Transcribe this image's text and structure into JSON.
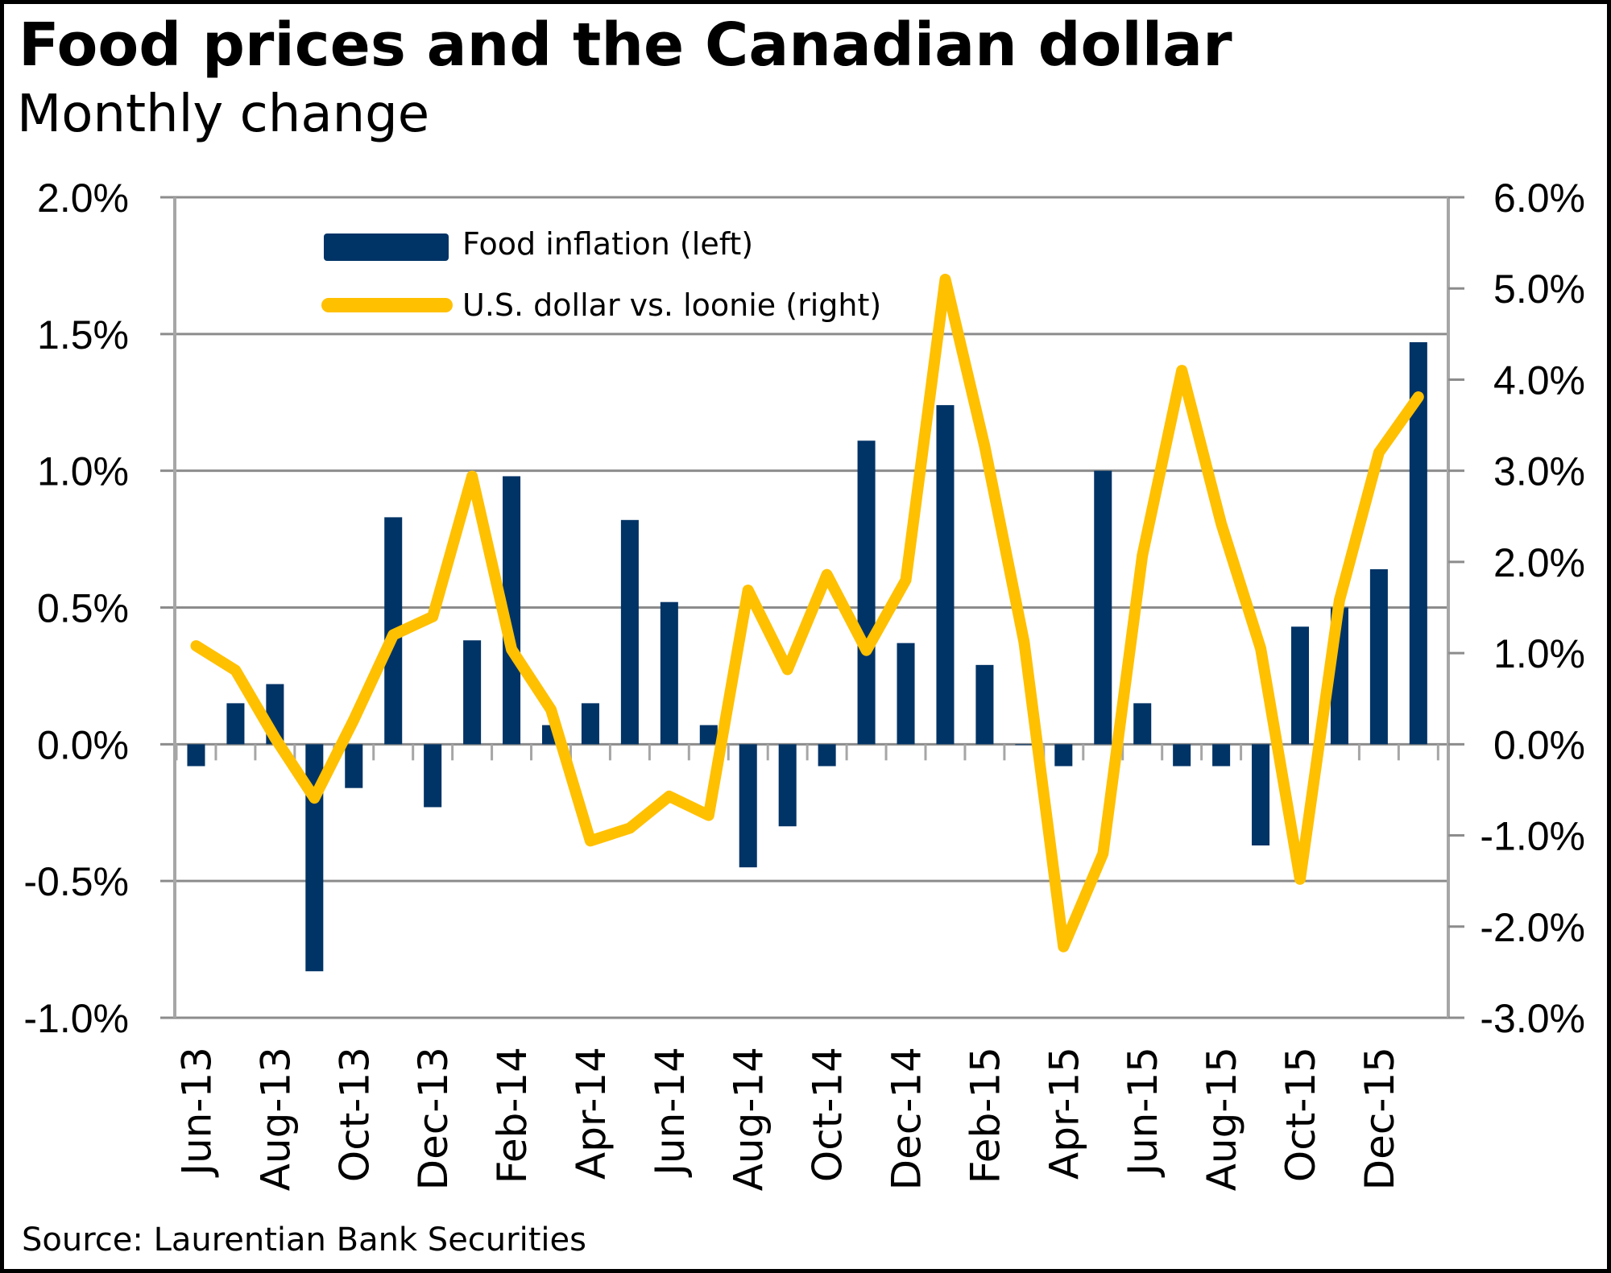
{
  "title": "Food prices and the Canadian dollar",
  "subtitle": "Monthly change",
  "source": "Source: Laurentian Bank Securities",
  "colors": {
    "bars": "#003366",
    "line": "#FFC000",
    "grid": "#8c8c8c"
  },
  "chart_data": {
    "type": "bar+line",
    "title": "Food prices and the Canadian dollar",
    "subtitle": "Monthly change",
    "categories": [
      "Jun-13",
      "Jul-13",
      "Aug-13",
      "Sep-13",
      "Oct-13",
      "Nov-13",
      "Dec-13",
      "Jan-14",
      "Feb-14",
      "Mar-14",
      "Apr-14",
      "May-14",
      "Jun-14",
      "Jul-14",
      "Aug-14",
      "Sep-14",
      "Oct-14",
      "Nov-14",
      "Dec-14",
      "Jan-15",
      "Feb-15",
      "Mar-15",
      "Apr-15",
      "May-15",
      "Jun-15",
      "Jul-15",
      "Aug-15",
      "Sep-15",
      "Oct-15",
      "Nov-15",
      "Dec-15",
      "Jan-16"
    ],
    "x_tick_labels": [
      "Jun-13",
      "Aug-13",
      "Oct-13",
      "Dec-13",
      "Feb-14",
      "Apr-14",
      "Jun-14",
      "Aug-14",
      "Oct-14",
      "Dec-14",
      "Feb-15",
      "Apr-15",
      "Jun-15",
      "Aug-15",
      "Oct-15",
      "Dec-15"
    ],
    "series": [
      {
        "name": "Food inflation (left)",
        "type": "bar",
        "axis": "left",
        "values": [
          -0.08,
          0.15,
          0.22,
          -0.83,
          -0.16,
          0.83,
          -0.23,
          0.38,
          0.98,
          0.07,
          0.15,
          0.82,
          0.52,
          0.07,
          -0.45,
          -0.3,
          -0.08,
          1.11,
          0.37,
          1.24,
          0.29,
          0.0,
          -0.08,
          1.0,
          0.15,
          -0.08,
          -0.08,
          -0.37,
          0.43,
          0.5,
          0.64,
          1.47
        ]
      },
      {
        "name": "U.S. dollar vs. loonie (right)",
        "type": "line",
        "axis": "right",
        "values": [
          1.08,
          0.81,
          0.07,
          -0.59,
          0.27,
          1.2,
          1.4,
          2.94,
          1.04,
          0.38,
          -1.06,
          -0.92,
          -0.57,
          -0.78,
          1.69,
          0.82,
          1.86,
          1.03,
          1.8,
          5.1,
          3.27,
          1.12,
          -2.22,
          -1.2,
          2.07,
          4.1,
          2.42,
          1.05,
          -1.48,
          1.58,
          3.2,
          3.81
        ]
      }
    ],
    "left_axis": {
      "ylim": [
        -1.0,
        2.0
      ],
      "ticks": [
        -1.0,
        -0.5,
        0.0,
        0.5,
        1.0,
        1.5,
        2.0
      ],
      "tick_labels": [
        "-1.0%",
        "-0.5%",
        "0.0%",
        "0.5%",
        "1.0%",
        "1.5%",
        "2.0%"
      ]
    },
    "right_axis": {
      "ylim": [
        -3.0,
        6.0
      ],
      "ticks": [
        -3,
        -2,
        -1,
        0,
        1,
        2,
        3,
        4,
        5,
        6
      ],
      "tick_labels": [
        "-3.0%",
        "-2.0%",
        "-1.0%",
        "0.0%",
        "1.0%",
        "2.0%",
        "3.0%",
        "4.0%",
        "5.0%",
        "6.0%"
      ]
    },
    "xlabel": "",
    "ylabel": "",
    "grid": true,
    "legend": {
      "placement": "top-left",
      "entries": [
        "Food inflation (left)",
        "U.S. dollar vs. loonie (right)"
      ]
    }
  }
}
